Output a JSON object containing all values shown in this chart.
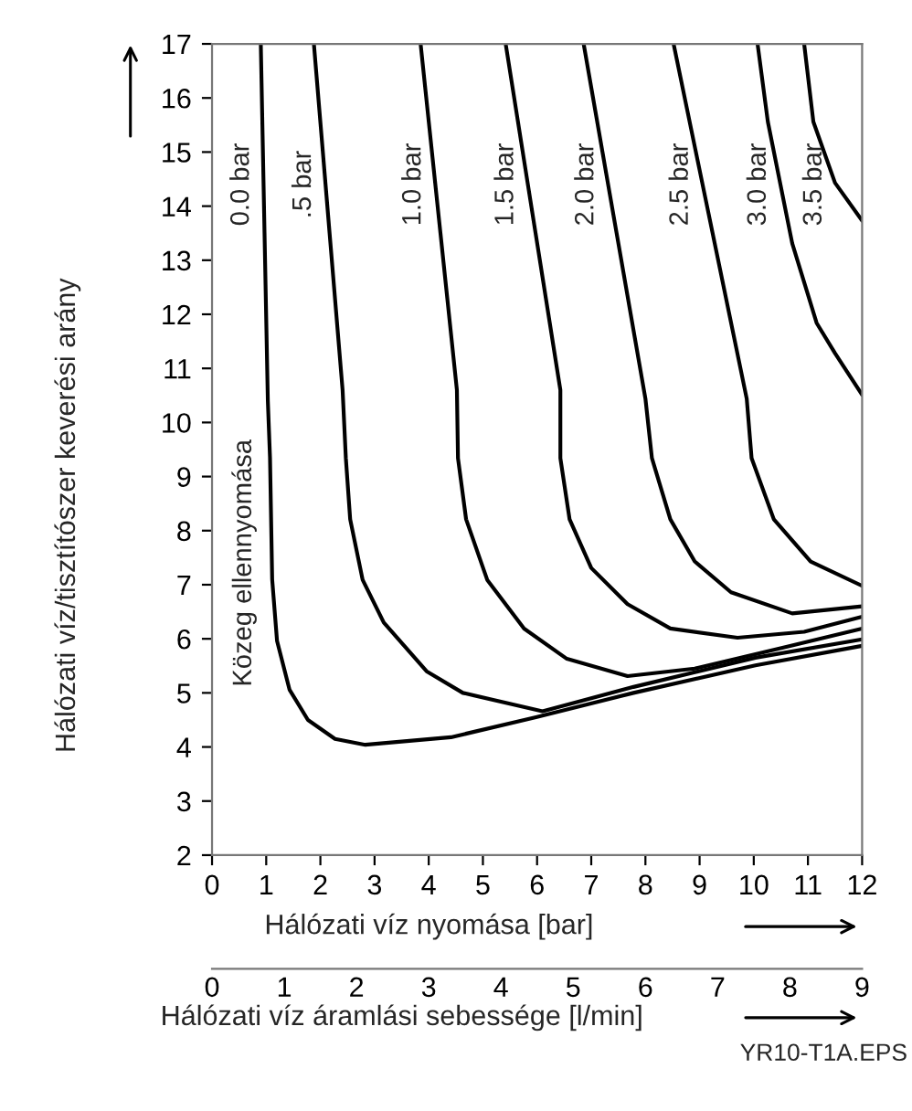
{
  "chart_data": {
    "type": "line",
    "xlabel": "Hálózati víz nyomása [bar]",
    "ylabel": "Hálózati víz/tisztítószer keverési arány",
    "x2label": "Hálózati víz áramlási sebessége [l/min]",
    "xlim": [
      0,
      12
    ],
    "xticks": [
      0,
      1,
      2,
      3,
      4,
      5,
      6,
      7,
      8,
      9,
      10,
      11,
      12
    ],
    "ylim": [
      2,
      17
    ],
    "yticks": [
      2,
      3,
      4,
      5,
      6,
      7,
      8,
      9,
      10,
      11,
      12,
      13,
      14,
      15,
      16,
      17
    ],
    "x2lim": [
      0,
      9
    ],
    "x2ticks": [
      0,
      1,
      2,
      3,
      4,
      5,
      6,
      7,
      8,
      9
    ],
    "grid": false,
    "legend": false,
    "series": [
      {
        "name": "0.0 bar",
        "color": "#000000",
        "x": [
          0.9,
          1.03,
          1.07,
          1.11,
          1.2,
          1.43,
          1.77,
          2.27,
          2.83,
          4.41,
          5.98,
          7.78,
          10.03,
          12
        ],
        "values": [
          17,
          10.4,
          9.35,
          7.1,
          5.96,
          5.06,
          4.5,
          4.15,
          4.04,
          4.18,
          4.55,
          5.0,
          5.51,
          5.87
        ]
      },
      {
        "name": ".5 bar",
        "color": "#000000",
        "x": [
          1.88,
          2.41,
          2.47,
          2.55,
          2.78,
          3.17,
          3.96,
          4.63,
          6.1,
          7.78,
          10.03,
          12
        ],
        "values": [
          17,
          10.6,
          9.34,
          8.21,
          7.09,
          6.3,
          5.4,
          5.0,
          4.66,
          5.11,
          5.65,
          5.99
        ]
      },
      {
        "name": "1.0 bar",
        "color": "#000000",
        "x": [
          3.85,
          4.52,
          4.54,
          4.69,
          5.08,
          5.76,
          6.55,
          7.67,
          8.91,
          10.6,
          12
        ],
        "values": [
          17,
          10.6,
          9.34,
          8.21,
          7.09,
          6.19,
          5.63,
          5.31,
          5.45,
          5.85,
          6.19
        ]
      },
      {
        "name": "1.5 bar",
        "color": "#000000",
        "x": [
          5.42,
          6.43,
          6.43,
          6.6,
          7.0,
          7.67,
          8.46,
          9.7,
          10.93,
          12
        ],
        "values": [
          17,
          10.6,
          9.34,
          8.21,
          7.31,
          6.64,
          6.19,
          6.02,
          6.13,
          6.41
        ]
      },
      {
        "name": "2.0 bar",
        "color": "#000000",
        "x": [
          6.86,
          8.0,
          8.12,
          8.46,
          8.91,
          9.58,
          10.71,
          12
        ],
        "values": [
          17,
          10.44,
          9.34,
          8.21,
          7.43,
          6.86,
          6.47,
          6.6
        ]
      },
      {
        "name": "2.5 bar",
        "color": "#000000",
        "x": [
          8.52,
          9.87,
          9.96,
          10.37,
          11.05,
          12
        ],
        "values": [
          17,
          10.44,
          9.34,
          8.21,
          7.43,
          6.98
        ]
      },
      {
        "name": "3.0 bar",
        "color": "#000000",
        "x": [
          10.07,
          10.26,
          10.71,
          11.16,
          11.5,
          12
        ],
        "values": [
          17,
          15.56,
          13.31,
          11.84,
          11.28,
          10.51
        ]
      },
      {
        "name": "3.5 bar",
        "color": "#000000",
        "x": [
          10.93,
          11.1,
          11.5,
          12
        ],
        "values": [
          17,
          15.56,
          14.43,
          13.73
        ]
      }
    ],
    "annotations": [
      "Közeg ellennyomása",
      "YR10-T1A.EPS"
    ]
  }
}
